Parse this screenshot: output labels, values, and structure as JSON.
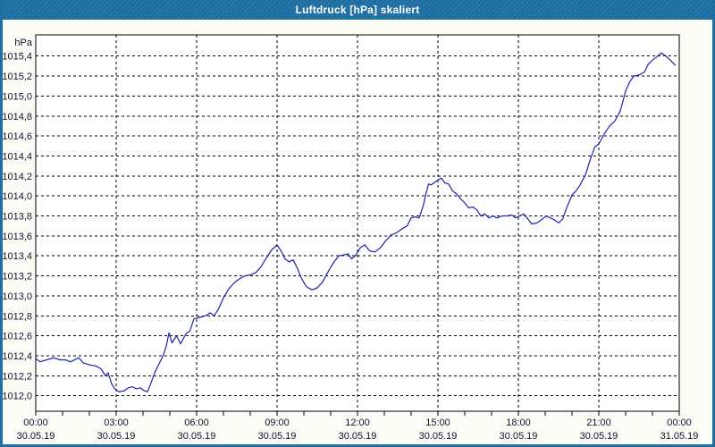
{
  "window": {
    "title": "Luftdruck [hPa] skaliert"
  },
  "colors": {
    "titlebar_bg": "#1d6fa4",
    "titlebar_text": "#ffffff",
    "window_bg": "#fcfcf7",
    "plot_bg": "#ffffff",
    "plot_border": "#000000",
    "grid": "#000000",
    "tick_label": "#12122e",
    "line": "#2020b4"
  },
  "chart_data": {
    "type": "line",
    "title": "Luftdruck [hPa] skaliert",
    "ylabel": "hPa",
    "grid": true,
    "y_axis": {
      "min": 1012.0,
      "max": 1015.4,
      "step": 0.2,
      "tick_labels": [
        "1012,0",
        "1012,2",
        "1012,4",
        "1012,6",
        "1012,8",
        "1013,0",
        "1013,2",
        "1013,4",
        "1013,6",
        "1013,8",
        "1014,0",
        "1014,2",
        "1014,4",
        "1014,6",
        "1014,8",
        "1015,0",
        "1015,2",
        "1015,4"
      ]
    },
    "x_axis": {
      "span_hours": 24,
      "minor_tick_hours": 1,
      "major_ticks": [
        {
          "hour": 0,
          "time": "00:00",
          "date": "30.05.19"
        },
        {
          "hour": 3,
          "time": "03:00",
          "date": "30.05.19"
        },
        {
          "hour": 6,
          "time": "06:00",
          "date": "30.05.19"
        },
        {
          "hour": 9,
          "time": "09:00",
          "date": "30.05.19"
        },
        {
          "hour": 12,
          "time": "12:00",
          "date": "30.05.19"
        },
        {
          "hour": 15,
          "time": "15:00",
          "date": "30.05.19"
        },
        {
          "hour": 18,
          "time": "18:00",
          "date": "30.05.19"
        },
        {
          "hour": 21,
          "time": "21:00",
          "date": "30.05.19"
        },
        {
          "hour": 24,
          "time": "00:00",
          "date": "31.05.19"
        }
      ]
    },
    "series": [
      {
        "name": "Luftdruck",
        "points": [
          [
            0.0,
            1012.37
          ],
          [
            0.17,
            1012.34
          ],
          [
            0.4,
            1012.36
          ],
          [
            0.67,
            1012.38
          ],
          [
            0.9,
            1012.36
          ],
          [
            1.1,
            1012.36
          ],
          [
            1.3,
            1012.34
          ],
          [
            1.6,
            1012.38
          ],
          [
            1.77,
            1012.33
          ],
          [
            2.0,
            1012.31
          ],
          [
            2.23,
            1012.3
          ],
          [
            2.43,
            1012.27
          ],
          [
            2.6,
            1012.2
          ],
          [
            2.7,
            1012.23
          ],
          [
            2.83,
            1012.12
          ],
          [
            2.95,
            1012.07
          ],
          [
            3.1,
            1012.04
          ],
          [
            3.3,
            1012.05
          ],
          [
            3.45,
            1012.08
          ],
          [
            3.6,
            1012.09
          ],
          [
            3.75,
            1012.07
          ],
          [
            3.9,
            1012.08
          ],
          [
            4.05,
            1012.05
          ],
          [
            4.17,
            1012.04
          ],
          [
            4.3,
            1012.13
          ],
          [
            4.45,
            1012.24
          ],
          [
            4.6,
            1012.32
          ],
          [
            4.75,
            1012.4
          ],
          [
            4.87,
            1012.5
          ],
          [
            4.97,
            1012.63
          ],
          [
            5.08,
            1012.53
          ],
          [
            5.25,
            1012.6
          ],
          [
            5.4,
            1012.52
          ],
          [
            5.6,
            1012.62
          ],
          [
            5.75,
            1012.65
          ],
          [
            5.9,
            1012.77
          ],
          [
            6.05,
            1012.78
          ],
          [
            6.2,
            1012.79
          ],
          [
            6.4,
            1012.81
          ],
          [
            6.5,
            1012.83
          ],
          [
            6.65,
            1012.8
          ],
          [
            6.8,
            1012.86
          ],
          [
            7.0,
            1012.98
          ],
          [
            7.2,
            1013.07
          ],
          [
            7.4,
            1013.13
          ],
          [
            7.6,
            1013.17
          ],
          [
            7.8,
            1013.2
          ],
          [
            8.0,
            1013.21
          ],
          [
            8.2,
            1013.23
          ],
          [
            8.4,
            1013.29
          ],
          [
            8.6,
            1013.38
          ],
          [
            8.8,
            1013.46
          ],
          [
            9.0,
            1013.51
          ],
          [
            9.15,
            1013.45
          ],
          [
            9.3,
            1013.37
          ],
          [
            9.45,
            1013.34
          ],
          [
            9.6,
            1013.36
          ],
          [
            9.75,
            1013.28
          ],
          [
            9.9,
            1013.18
          ],
          [
            10.1,
            1013.09
          ],
          [
            10.3,
            1013.06
          ],
          [
            10.5,
            1013.08
          ],
          [
            10.7,
            1013.14
          ],
          [
            10.9,
            1013.24
          ],
          [
            11.1,
            1013.33
          ],
          [
            11.3,
            1013.4
          ],
          [
            11.5,
            1013.41
          ],
          [
            11.65,
            1013.42
          ],
          [
            11.78,
            1013.37
          ],
          [
            11.95,
            1013.41
          ],
          [
            12.1,
            1013.48
          ],
          [
            12.27,
            1013.51
          ],
          [
            12.45,
            1013.45
          ],
          [
            12.65,
            1013.44
          ],
          [
            12.85,
            1013.48
          ],
          [
            13.05,
            1013.55
          ],
          [
            13.25,
            1013.61
          ],
          [
            13.45,
            1013.63
          ],
          [
            13.65,
            1013.67
          ],
          [
            13.85,
            1013.7
          ],
          [
            14.0,
            1013.78
          ],
          [
            14.15,
            1013.79
          ],
          [
            14.3,
            1013.78
          ],
          [
            14.45,
            1013.9
          ],
          [
            14.55,
            1014.02
          ],
          [
            14.65,
            1014.12
          ],
          [
            14.75,
            1014.11
          ],
          [
            14.85,
            1014.13
          ],
          [
            15.0,
            1014.16
          ],
          [
            15.13,
            1014.18
          ],
          [
            15.25,
            1014.13
          ],
          [
            15.4,
            1014.12
          ],
          [
            15.55,
            1014.05
          ],
          [
            15.7,
            1014.02
          ],
          [
            15.85,
            1013.97
          ],
          [
            16.0,
            1013.93
          ],
          [
            16.15,
            1013.88
          ],
          [
            16.3,
            1013.89
          ],
          [
            16.45,
            1013.86
          ],
          [
            16.6,
            1013.8
          ],
          [
            16.75,
            1013.82
          ],
          [
            16.9,
            1013.78
          ],
          [
            17.05,
            1013.8
          ],
          [
            17.2,
            1013.78
          ],
          [
            17.4,
            1013.8
          ],
          [
            17.6,
            1013.8
          ],
          [
            17.75,
            1013.81
          ],
          [
            17.9,
            1013.78
          ],
          [
            18.05,
            1013.8
          ],
          [
            18.2,
            1013.82
          ],
          [
            18.35,
            1013.77
          ],
          [
            18.5,
            1013.72
          ],
          [
            18.7,
            1013.73
          ],
          [
            18.9,
            1013.77
          ],
          [
            19.05,
            1013.8
          ],
          [
            19.2,
            1013.78
          ],
          [
            19.35,
            1013.76
          ],
          [
            19.5,
            1013.73
          ],
          [
            19.65,
            1013.77
          ],
          [
            19.8,
            1013.88
          ],
          [
            20.0,
            1014.01
          ],
          [
            20.15,
            1014.05
          ],
          [
            20.3,
            1014.11
          ],
          [
            20.5,
            1014.21
          ],
          [
            20.7,
            1014.38
          ],
          [
            20.85,
            1014.49
          ],
          [
            21.0,
            1014.52
          ],
          [
            21.2,
            1014.62
          ],
          [
            21.4,
            1014.7
          ],
          [
            21.6,
            1014.75
          ],
          [
            21.8,
            1014.85
          ],
          [
            22.0,
            1015.05
          ],
          [
            22.15,
            1015.14
          ],
          [
            22.3,
            1015.2
          ],
          [
            22.5,
            1015.21
          ],
          [
            22.7,
            1015.24
          ],
          [
            22.85,
            1015.32
          ],
          [
            23.0,
            1015.36
          ],
          [
            23.15,
            1015.39
          ],
          [
            23.33,
            1015.43
          ],
          [
            23.5,
            1015.4
          ],
          [
            23.7,
            1015.35
          ],
          [
            23.85,
            1015.31
          ]
        ]
      }
    ]
  }
}
